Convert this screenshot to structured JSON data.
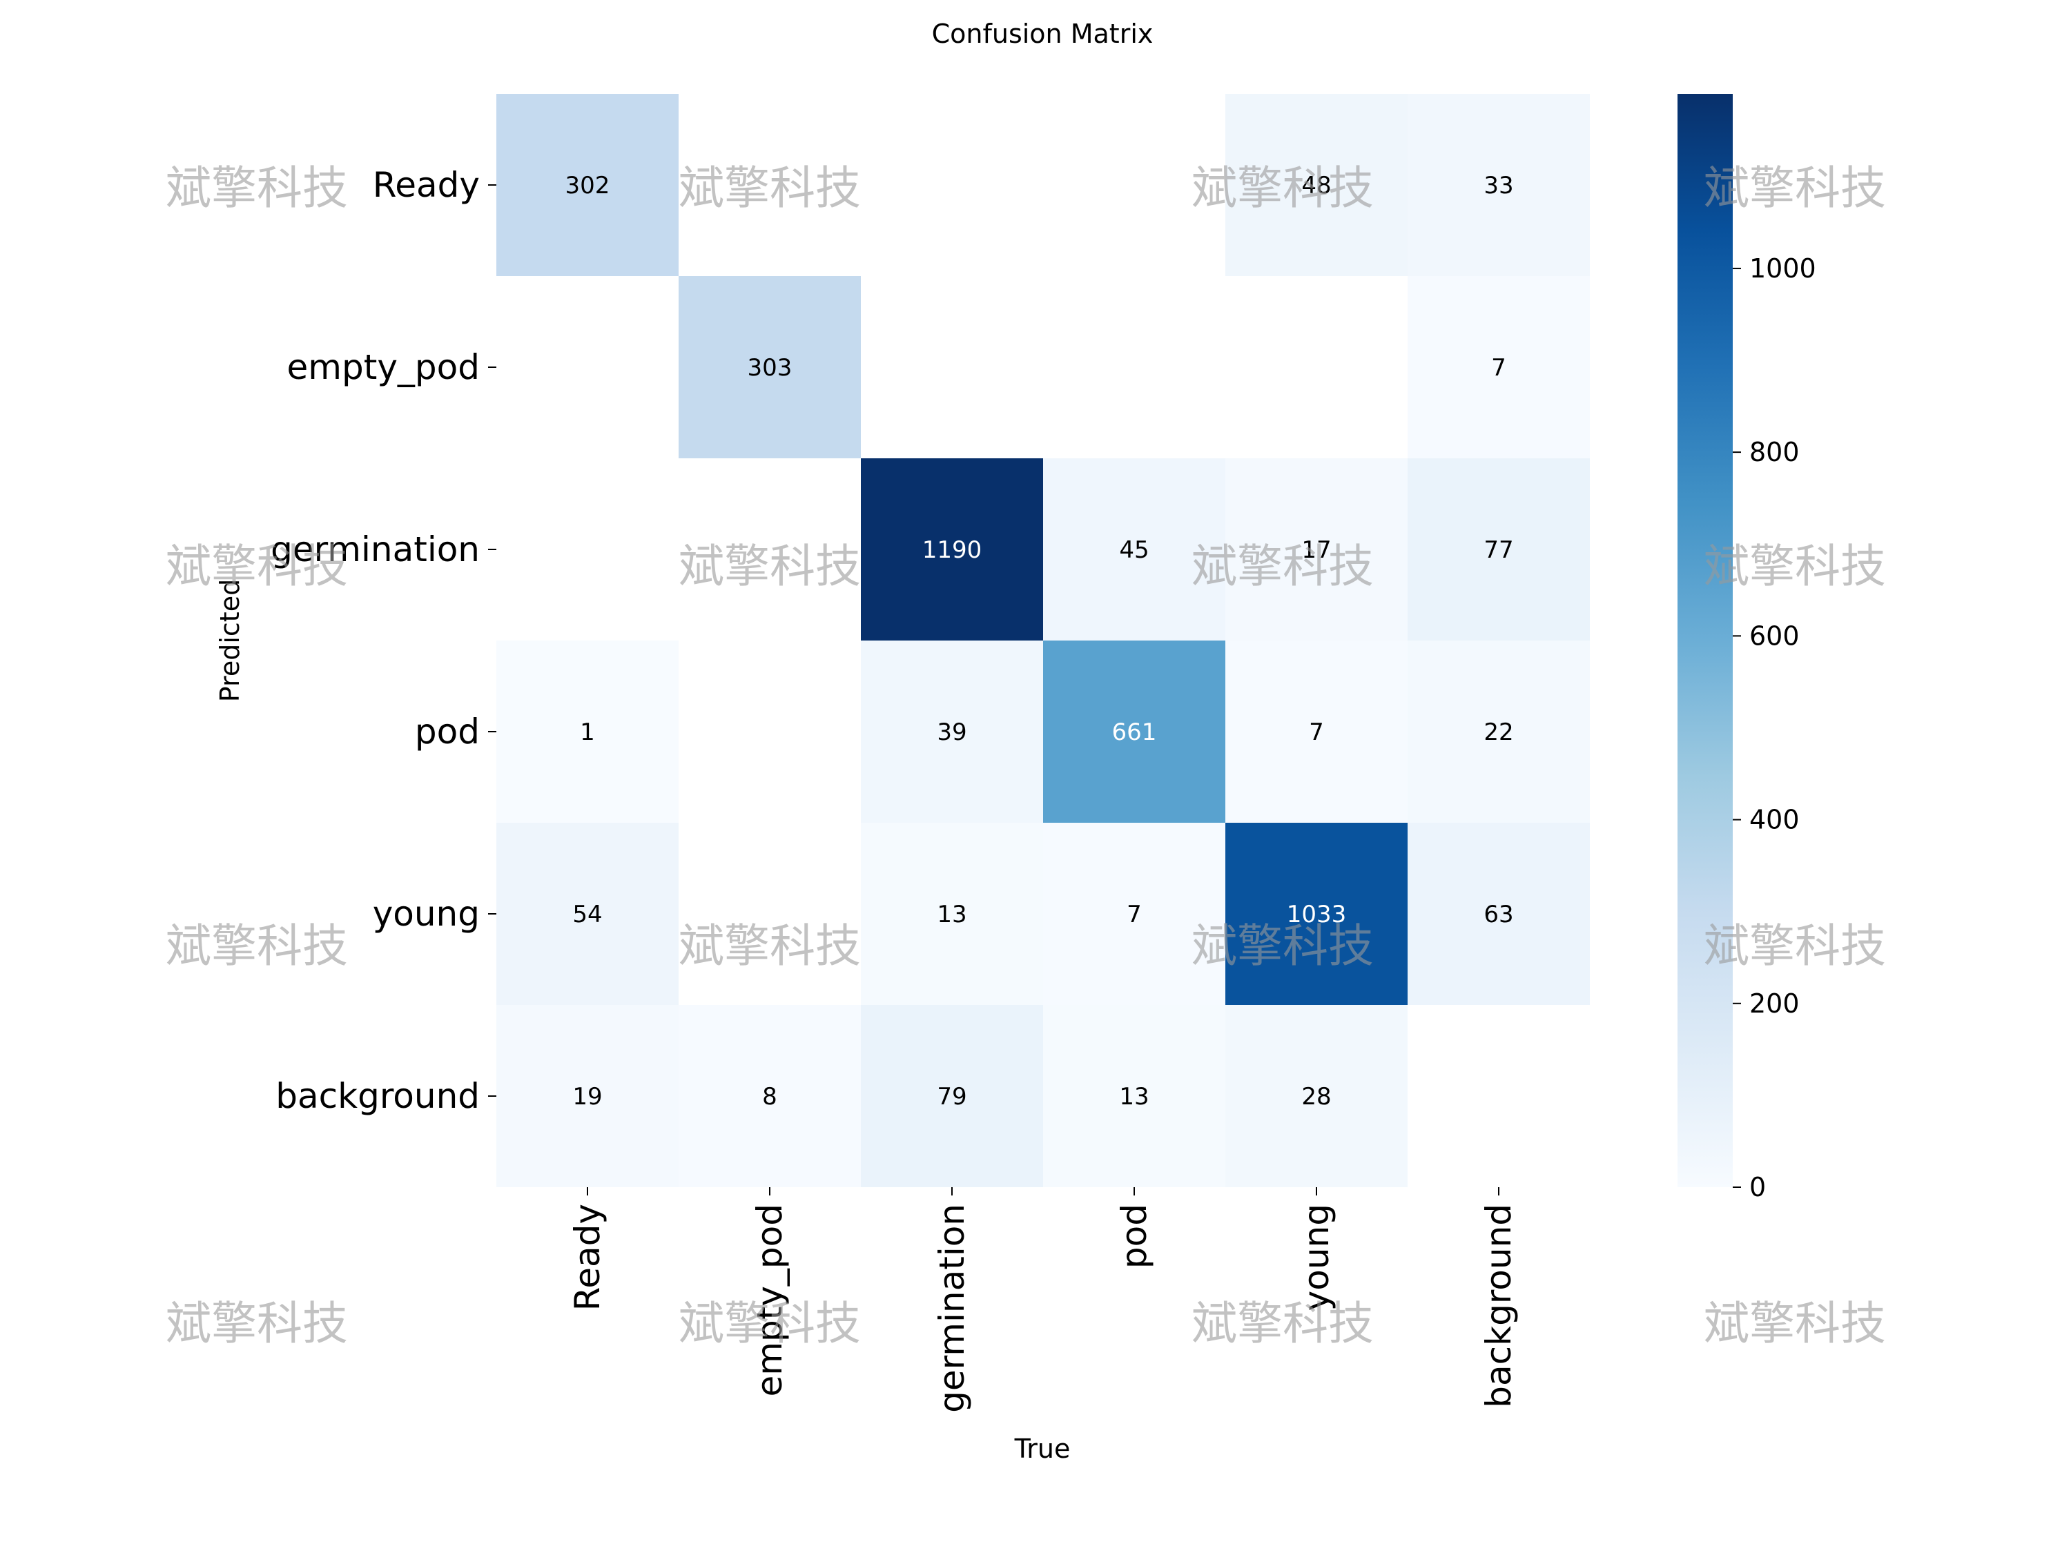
{
  "chart_data": {
    "type": "heatmap",
    "title": "Confusion Matrix",
    "xlabel": "True",
    "ylabel": "Predicted",
    "x_categories": [
      "Ready",
      "empty_pod",
      "germination",
      "pod",
      "young",
      "background"
    ],
    "y_categories": [
      "Ready",
      "empty_pod",
      "germination",
      "pod",
      "young",
      "background"
    ],
    "values": [
      [
        302,
        null,
        null,
        null,
        48,
        33
      ],
      [
        null,
        303,
        null,
        null,
        null,
        7
      ],
      [
        null,
        null,
        1190,
        45,
        17,
        77
      ],
      [
        1,
        null,
        39,
        661,
        7,
        22
      ],
      [
        54,
        null,
        13,
        7,
        1033,
        63
      ],
      [
        19,
        8,
        79,
        13,
        28,
        null
      ]
    ],
    "colorbar": {
      "min": 0,
      "max": 1190,
      "ticks": [
        0,
        200,
        400,
        600,
        800,
        1000
      ]
    },
    "colormap": "Blues",
    "colors": {
      "low": "#f7fbff",
      "high": "#08306b",
      "text_dark": "#000000",
      "text_light": "#ffffff"
    }
  },
  "watermark": {
    "text": "斌擎科技"
  }
}
